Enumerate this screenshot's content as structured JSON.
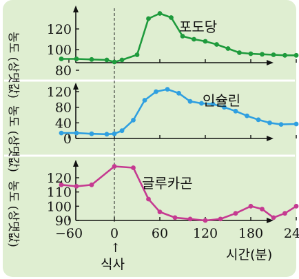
{
  "chart_data": [
    {
      "type": "line",
      "title": "포도당",
      "ylabel": "농도 (상댓값)",
      "color": "#1e9a3c",
      "x": [
        -70,
        -50,
        -30,
        -10,
        0,
        10,
        30,
        45,
        60,
        75,
        90,
        105,
        120,
        135,
        150,
        165,
        180,
        195,
        210,
        225,
        240
      ],
      "y": [
        91,
        91,
        90.5,
        90,
        88,
        90,
        95,
        130,
        135,
        131,
        113,
        110,
        108,
        105,
        101,
        97,
        96,
        95.5,
        95,
        94.5,
        94.5
      ],
      "yticks": [
        "120",
        "100",
        "80"
      ],
      "ylim": [
        80,
        140
      ]
    },
    {
      "type": "line",
      "title": "인슐린",
      "ylabel": "농도 (상댓값)",
      "color": "#2f9fe0",
      "x": [
        -70,
        -50,
        -30,
        -10,
        0,
        10,
        25,
        40,
        55,
        70,
        85,
        100,
        115,
        130,
        145,
        160,
        175,
        190,
        205,
        220,
        240
      ],
      "y": [
        14,
        14,
        12,
        11,
        12,
        20,
        47,
        98,
        120,
        126,
        116,
        95,
        90,
        88,
        80,
        70,
        58,
        48,
        40,
        36,
        37
      ],
      "yticks": [
        "120",
        "80",
        "40",
        "0"
      ],
      "ylim": [
        0,
        135
      ]
    },
    {
      "type": "line",
      "title": "글루카곤",
      "ylabel": "농도 (상댓값)",
      "color": "#c53a91",
      "x": [
        -70,
        -50,
        -30,
        0,
        25,
        45,
        60,
        80,
        100,
        120,
        140,
        160,
        180,
        195,
        210,
        225,
        240
      ],
      "y": [
        115,
        114,
        115,
        128,
        127,
        105,
        96,
        92,
        91,
        90,
        91,
        95,
        100,
        98,
        92,
        95,
        100
      ],
      "yticks": [
        "120",
        "110",
        "100",
        "90"
      ],
      "ylim": [
        90,
        130
      ]
    }
  ],
  "x_axis": {
    "ticks": [
      "−60",
      "0",
      "60",
      "120",
      "180",
      "240"
    ],
    "label": "시간(분)"
  },
  "annotation": {
    "meal": "식사",
    "arrow": "↑"
  }
}
